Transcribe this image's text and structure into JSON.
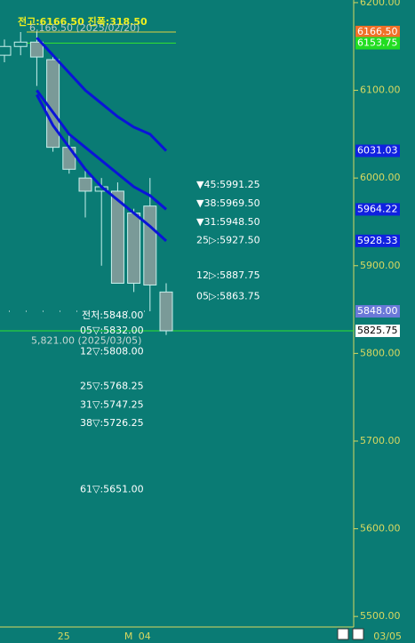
{
  "chart_data": {
    "type": "candlestick",
    "title": "전고:6166.50 진폭:318.50",
    "categories": [
      null,
      null,
      null,
      null,
      "25",
      null,
      null,
      null,
      "M",
      "04",
      null
    ],
    "date_label": "03/05",
    "open": [
      6140,
      6150,
      6155,
      6135,
      6035,
      6000,
      5985,
      5985,
      5960,
      5968,
      5870
    ],
    "high": [
      6158,
      6166.5,
      6166.5,
      6140,
      6050,
      6010,
      6000,
      5995,
      5965,
      6000,
      5880
    ],
    "low": [
      6132,
      6140,
      6105,
      6030,
      6005,
      5955,
      5900,
      5880,
      5870,
      5848,
      5821
    ],
    "close": [
      6150,
      6155,
      6138,
      6035,
      6010,
      5985,
      5990,
      5880,
      5880,
      5878,
      5825.75
    ],
    "candle_color": "#c8f0ec",
    "series": [
      {
        "color": "#0a14d8",
        "values": [
          null,
          null,
          6160,
          6140,
          6120,
          6100,
          6085,
          6070,
          6058,
          6050,
          6031.03
        ]
      },
      {
        "color": "#0a14d8",
        "values": [
          null,
          null,
          6100,
          6075,
          6050,
          6035,
          6020,
          6005,
          5990,
          5980,
          5964.22
        ]
      },
      {
        "color": "#0a14d8",
        "values": [
          null,
          null,
          6095,
          6060,
          6035,
          6010,
          5990,
          5975,
          5960,
          5945,
          5928.33
        ]
      }
    ],
    "ylim": [
      5488,
      6203
    ],
    "yticks": [
      {
        "value": 5500,
        "label": "5500.00"
      },
      {
        "value": 5600,
        "label": "5600.00"
      },
      {
        "value": 5700,
        "label": "5700.00"
      },
      {
        "value": 5800,
        "label": "5800.00"
      },
      {
        "value": 5900,
        "label": "5900.00"
      },
      {
        "value": 6000,
        "label": "6000.00"
      },
      {
        "value": 6100,
        "label": "6100.00"
      },
      {
        "value": 6200,
        "label": "6200.00"
      }
    ],
    "price_marks": [
      {
        "value": 6166.5,
        "label": "6166.50",
        "color": "#f07028"
      },
      {
        "value": 6153.75,
        "label": "6153.75",
        "color": "#22dd22"
      },
      {
        "value": 6031.03,
        "label": "6031.03",
        "color": "#1020e0"
      },
      {
        "value": 5964.22,
        "label": "5964.22",
        "color": "#1020e0"
      },
      {
        "value": 5928.33,
        "label": "5928.33",
        "color": "#1020e0"
      },
      {
        "value": 5848,
        "label": "5848.00",
        "color": "#6a78d8"
      },
      {
        "value": 5825.75,
        "label": "5825.75",
        "color": "#ffffff"
      }
    ],
    "high_note": {
      "value": 6166.5,
      "label": "6,166.50 (2025/02/20)"
    },
    "low_note": {
      "value": 5821,
      "label": "5,821.00 (2025/03/05)"
    },
    "prev_low": {
      "value": 5848,
      "label": "전저:5848.00"
    },
    "levels_right": [
      {
        "value": 5991.25,
        "label": "▼45:5991.25"
      },
      {
        "value": 5969.5,
        "label": "▼38:5969.50"
      },
      {
        "value": 5948.5,
        "label": "▼31:5948.50"
      },
      {
        "value": 5927.5,
        "label": "25▷:5927.50"
      },
      {
        "value": 5887.75,
        "label": "12▷:5887.75"
      },
      {
        "value": 5863.75,
        "label": "05▷:5863.75"
      }
    ],
    "levels_left": [
      {
        "value": 5832,
        "label": "05▽:5832.00"
      },
      {
        "value": 5808,
        "label": "12▽:5808.00"
      },
      {
        "value": 5768.25,
        "label": "25▽:5768.25"
      },
      {
        "value": 5747.25,
        "label": "31▽:5747.25"
      },
      {
        "value": 5726.25,
        "label": "38▽:5726.25"
      },
      {
        "value": 5651,
        "label": "61▽:5651.00"
      }
    ]
  }
}
